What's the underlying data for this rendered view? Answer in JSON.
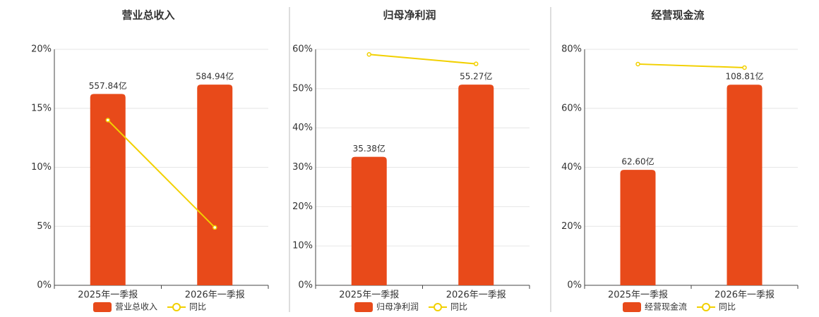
{
  "chart_data": [
    {
      "type": "combo",
      "title": "营业总收入",
      "categories": [
        "2025年一季报",
        "2026年一季报"
      ],
      "series": [
        {
          "name": "营业总收入",
          "type": "bar",
          "color": "#e84a1a",
          "axis": "y2",
          "values": [
            557.84,
            584.94
          ],
          "value_labels": [
            "557.84亿",
            "584.94亿"
          ]
        },
        {
          "name": "同比",
          "type": "line",
          "color": "#f2d000",
          "values": [
            14.0,
            4.9
          ]
        }
      ],
      "ylim": [
        0,
        20
      ],
      "yticks": [
        {
          "value": 0,
          "label": "0%"
        },
        {
          "value": 5,
          "label": "5%"
        },
        {
          "value": 10,
          "label": "10%"
        },
        {
          "value": 15,
          "label": "15%"
        },
        {
          "value": 20,
          "label": "20%"
        }
      ],
      "y2lim": [
        0,
        688
      ],
      "grid": true
    },
    {
      "type": "combo",
      "title": "归母净利润",
      "categories": [
        "2025年一季报",
        "2026年一季报"
      ],
      "series": [
        {
          "name": "归母净利润",
          "type": "bar",
          "color": "#e84a1a",
          "axis": "y2",
          "values": [
            35.38,
            55.27
          ],
          "value_labels": [
            "35.38亿",
            "55.27亿"
          ]
        },
        {
          "name": "同比",
          "type": "line",
          "color": "#f2d000",
          "values": [
            58.7,
            56.3
          ]
        }
      ],
      "ylim": [
        0,
        60
      ],
      "yticks": [
        {
          "value": 0,
          "label": "0%"
        },
        {
          "value": 10,
          "label": "10%"
        },
        {
          "value": 20,
          "label": "20%"
        },
        {
          "value": 30,
          "label": "30%"
        },
        {
          "value": 40,
          "label": "40%"
        },
        {
          "value": 50,
          "label": "50%"
        },
        {
          "value": 60,
          "label": "60%"
        }
      ],
      "y2lim": [
        0,
        65
      ],
      "grid": true
    },
    {
      "type": "combo",
      "title": "经营现金流",
      "categories": [
        "2025年一季报",
        "2026年一季报"
      ],
      "series": [
        {
          "name": "经营现金流",
          "type": "bar",
          "color": "#e84a1a",
          "axis": "y2",
          "values": [
            62.6,
            108.81
          ],
          "value_labels": [
            "62.60亿",
            "108.81亿"
          ]
        },
        {
          "name": "同比",
          "type": "line",
          "color": "#f2d000",
          "values": [
            75.0,
            73.8
          ]
        }
      ],
      "ylim": [
        0,
        80
      ],
      "yticks": [
        {
          "value": 0,
          "label": "0%"
        },
        {
          "value": 20,
          "label": "20%"
        },
        {
          "value": 40,
          "label": "40%"
        },
        {
          "value": 60,
          "label": "60%"
        },
        {
          "value": 80,
          "label": "80%"
        }
      ],
      "y2lim": [
        0,
        128
      ],
      "grid": true
    }
  ]
}
